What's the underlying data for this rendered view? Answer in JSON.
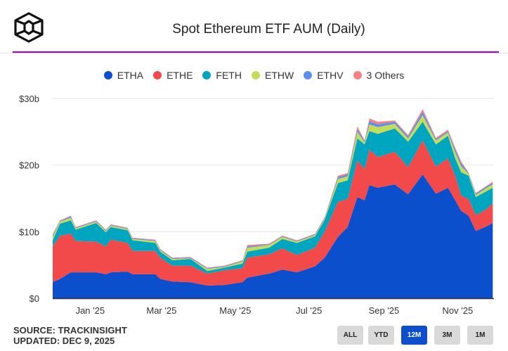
{
  "header": {
    "title": "Spot Ethereum ETF AUM (Daily)",
    "logo": "cube-logo"
  },
  "footer": {
    "source": "SOURCE: TRACKINSIGHT",
    "updated": "UPDATED: DEC 9, 2025"
  },
  "range_buttons": [
    {
      "label": "ALL",
      "active": false
    },
    {
      "label": "YTD",
      "active": false
    },
    {
      "label": "12M",
      "active": true
    },
    {
      "label": "3M",
      "active": false
    },
    {
      "label": "1M",
      "active": false
    }
  ],
  "chart_data": {
    "type": "area",
    "stacked": true,
    "title": "Spot Ethereum ETF AUM (Daily)",
    "legend_position": "top",
    "grid": true,
    "xlim": [
      "2024-12-01",
      "2025-12-01"
    ],
    "ylim": [
      0,
      30
    ],
    "y_ticks": [
      {
        "value": 0,
        "label": "$0"
      },
      {
        "value": 10,
        "label": "$10b"
      },
      {
        "value": 20,
        "label": "$20b"
      },
      {
        "value": 30,
        "label": "$30b"
      }
    ],
    "x_ticks": [
      {
        "date": "2025-01-01",
        "label": "Jan '25"
      },
      {
        "date": "2025-03-01",
        "label": "Mar '25"
      },
      {
        "date": "2025-05-01",
        "label": "May '25"
      },
      {
        "date": "2025-07-01",
        "label": "Jul '25"
      },
      {
        "date": "2025-09-01",
        "label": "Sep '25"
      },
      {
        "date": "2025-11-01",
        "label": "Nov '25"
      }
    ],
    "x": [
      "2024-12-01",
      "2024-12-07",
      "2024-12-16",
      "2024-12-20",
      "2025-01-06",
      "2025-01-14",
      "2025-01-18",
      "2025-02-01",
      "2025-02-05",
      "2025-02-24",
      "2025-02-28",
      "2025-03-10",
      "2025-03-25",
      "2025-04-08",
      "2025-04-22",
      "2025-05-07",
      "2025-05-11",
      "2025-05-29",
      "2025-06-09",
      "2025-06-21",
      "2025-07-06",
      "2025-07-14",
      "2025-07-25",
      "2025-08-02",
      "2025-08-10",
      "2025-08-16",
      "2025-08-20",
      "2025-08-27",
      "2025-09-10",
      "2025-09-21",
      "2025-10-03",
      "2025-10-14",
      "2025-10-24",
      "2025-10-30",
      "2025-11-04",
      "2025-11-10",
      "2025-11-16",
      "2025-11-25",
      "2025-11-30"
    ],
    "series": [
      {
        "name": "ETHA",
        "color": "#0b4fcc",
        "values": [
          2.4,
          2.9,
          3.9,
          3.9,
          3.9,
          3.6,
          3.9,
          4.0,
          3.6,
          3.6,
          2.9,
          2.5,
          2.4,
          1.9,
          2.0,
          2.4,
          3.1,
          3.7,
          4.3,
          3.9,
          4.8,
          6.1,
          9.2,
          10.7,
          15.2,
          14.7,
          17.0,
          16.6,
          17.1,
          15.6,
          18.6,
          15.7,
          16.6,
          14.7,
          13.1,
          12.4,
          10.1,
          10.8,
          11.3
        ]
      },
      {
        "name": "ETHE",
        "color": "#f24a4a",
        "values": [
          5.4,
          6.5,
          5.8,
          4.7,
          4.6,
          4.2,
          4.9,
          4.3,
          3.5,
          3.5,
          3.2,
          2.4,
          2.5,
          1.8,
          2.2,
          2.1,
          3.0,
          2.9,
          3.2,
          2.6,
          2.8,
          3.9,
          5.3,
          4.2,
          5.5,
          4.7,
          5.3,
          4.6,
          4.9,
          4.1,
          5.1,
          4.1,
          4.4,
          3.7,
          2.3,
          2.5,
          2.4,
          2.6,
          3.0
        ]
      },
      {
        "name": "FETH",
        "color": "#00a5c0",
        "values": [
          0.9,
          1.8,
          2.0,
          1.7,
          2.8,
          2.1,
          1.9,
          1.9,
          1.6,
          1.2,
          0.9,
          0.8,
          1.0,
          0.4,
          0.4,
          0.7,
          0.9,
          1.0,
          1.4,
          1.8,
          1.7,
          1.8,
          2.8,
          2.8,
          3.3,
          3.7,
          2.8,
          3.5,
          3.5,
          3.8,
          2.8,
          3.3,
          3.4,
          2.6,
          3.5,
          3.5,
          2.7,
          2.7,
          2.3
        ]
      },
      {
        "name": "ETHW",
        "color": "#c5dc5a",
        "values": [
          0.5,
          0.3,
          0.4,
          0.2,
          0.2,
          0.2,
          0.2,
          0.2,
          0.2,
          0.3,
          0.2,
          0.2,
          0.1,
          0.3,
          0.1,
          0.3,
          0.6,
          0.4,
          0.3,
          0.2,
          0.2,
          0.2,
          0.6,
          0.6,
          1.0,
          0.3,
          1.0,
          1.0,
          0.7,
          0.5,
          1.0,
          0.6,
          0.5,
          0.9,
          0.9,
          0.3,
          0.3,
          0.5,
          0.5
        ]
      },
      {
        "name": "ETHV",
        "color": "#5b8ff0",
        "values": [
          0.2,
          0.1,
          0.2,
          0.1,
          0.1,
          0.1,
          0.1,
          0.1,
          0.1,
          0.1,
          0.1,
          0.1,
          0.1,
          0.1,
          0.1,
          0.1,
          0.2,
          0.1,
          0.1,
          0.1,
          0.1,
          0.1,
          0.3,
          0.3,
          0.4,
          0.2,
          0.5,
          0.4,
          0.3,
          0.3,
          0.5,
          0.2,
          0.2,
          0.4,
          0.4,
          0.1,
          0.2,
          0.2,
          0.2
        ]
      },
      {
        "name": "3 Others",
        "color": "#f78080",
        "values": [
          0.2,
          0.1,
          0.1,
          0.1,
          0.1,
          0.1,
          0.1,
          0.1,
          0.1,
          0.1,
          0.1,
          0.1,
          0.1,
          0.1,
          0.1,
          0.1,
          0.2,
          0.1,
          0.1,
          0.1,
          0.1,
          0.1,
          0.2,
          0.2,
          0.4,
          0.1,
          0.4,
          0.4,
          0.2,
          0.2,
          0.4,
          0.2,
          0.2,
          0.3,
          0.3,
          0.1,
          0.1,
          0.1,
          0.2
        ]
      }
    ]
  }
}
